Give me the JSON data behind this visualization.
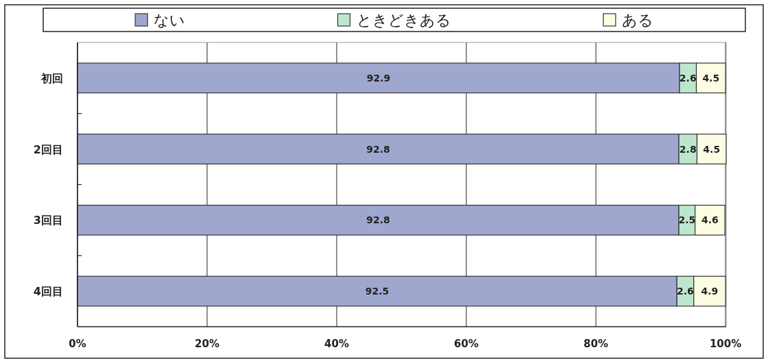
{
  "chart_data": {
    "type": "bar",
    "orientation": "horizontal",
    "stacked": true,
    "categories": [
      "初回",
      "2回目",
      "3回目",
      "4回目"
    ],
    "series": [
      {
        "name": "ない",
        "color": "#a0a7cf",
        "values": [
          92.9,
          92.8,
          92.8,
          92.5
        ]
      },
      {
        "name": "ときどきある",
        "color": "#bde6cf",
        "values": [
          2.6,
          2.8,
          2.5,
          2.6
        ]
      },
      {
        "name": "ある",
        "color": "#fdfde3",
        "values": [
          4.5,
          4.5,
          4.6,
          4.9
        ]
      }
    ],
    "xlim": [
      0,
      100.1
    ],
    "xticks": [
      {
        "value": 0,
        "label": "0%"
      },
      {
        "value": 20,
        "label": "20%"
      },
      {
        "value": 40,
        "label": "40%"
      },
      {
        "value": 60,
        "label": "60%"
      },
      {
        "value": 80,
        "label": "80%"
      },
      {
        "value": 100,
        "label": "100%"
      }
    ],
    "grid": "x",
    "legend": "top",
    "data_labels": true
  }
}
